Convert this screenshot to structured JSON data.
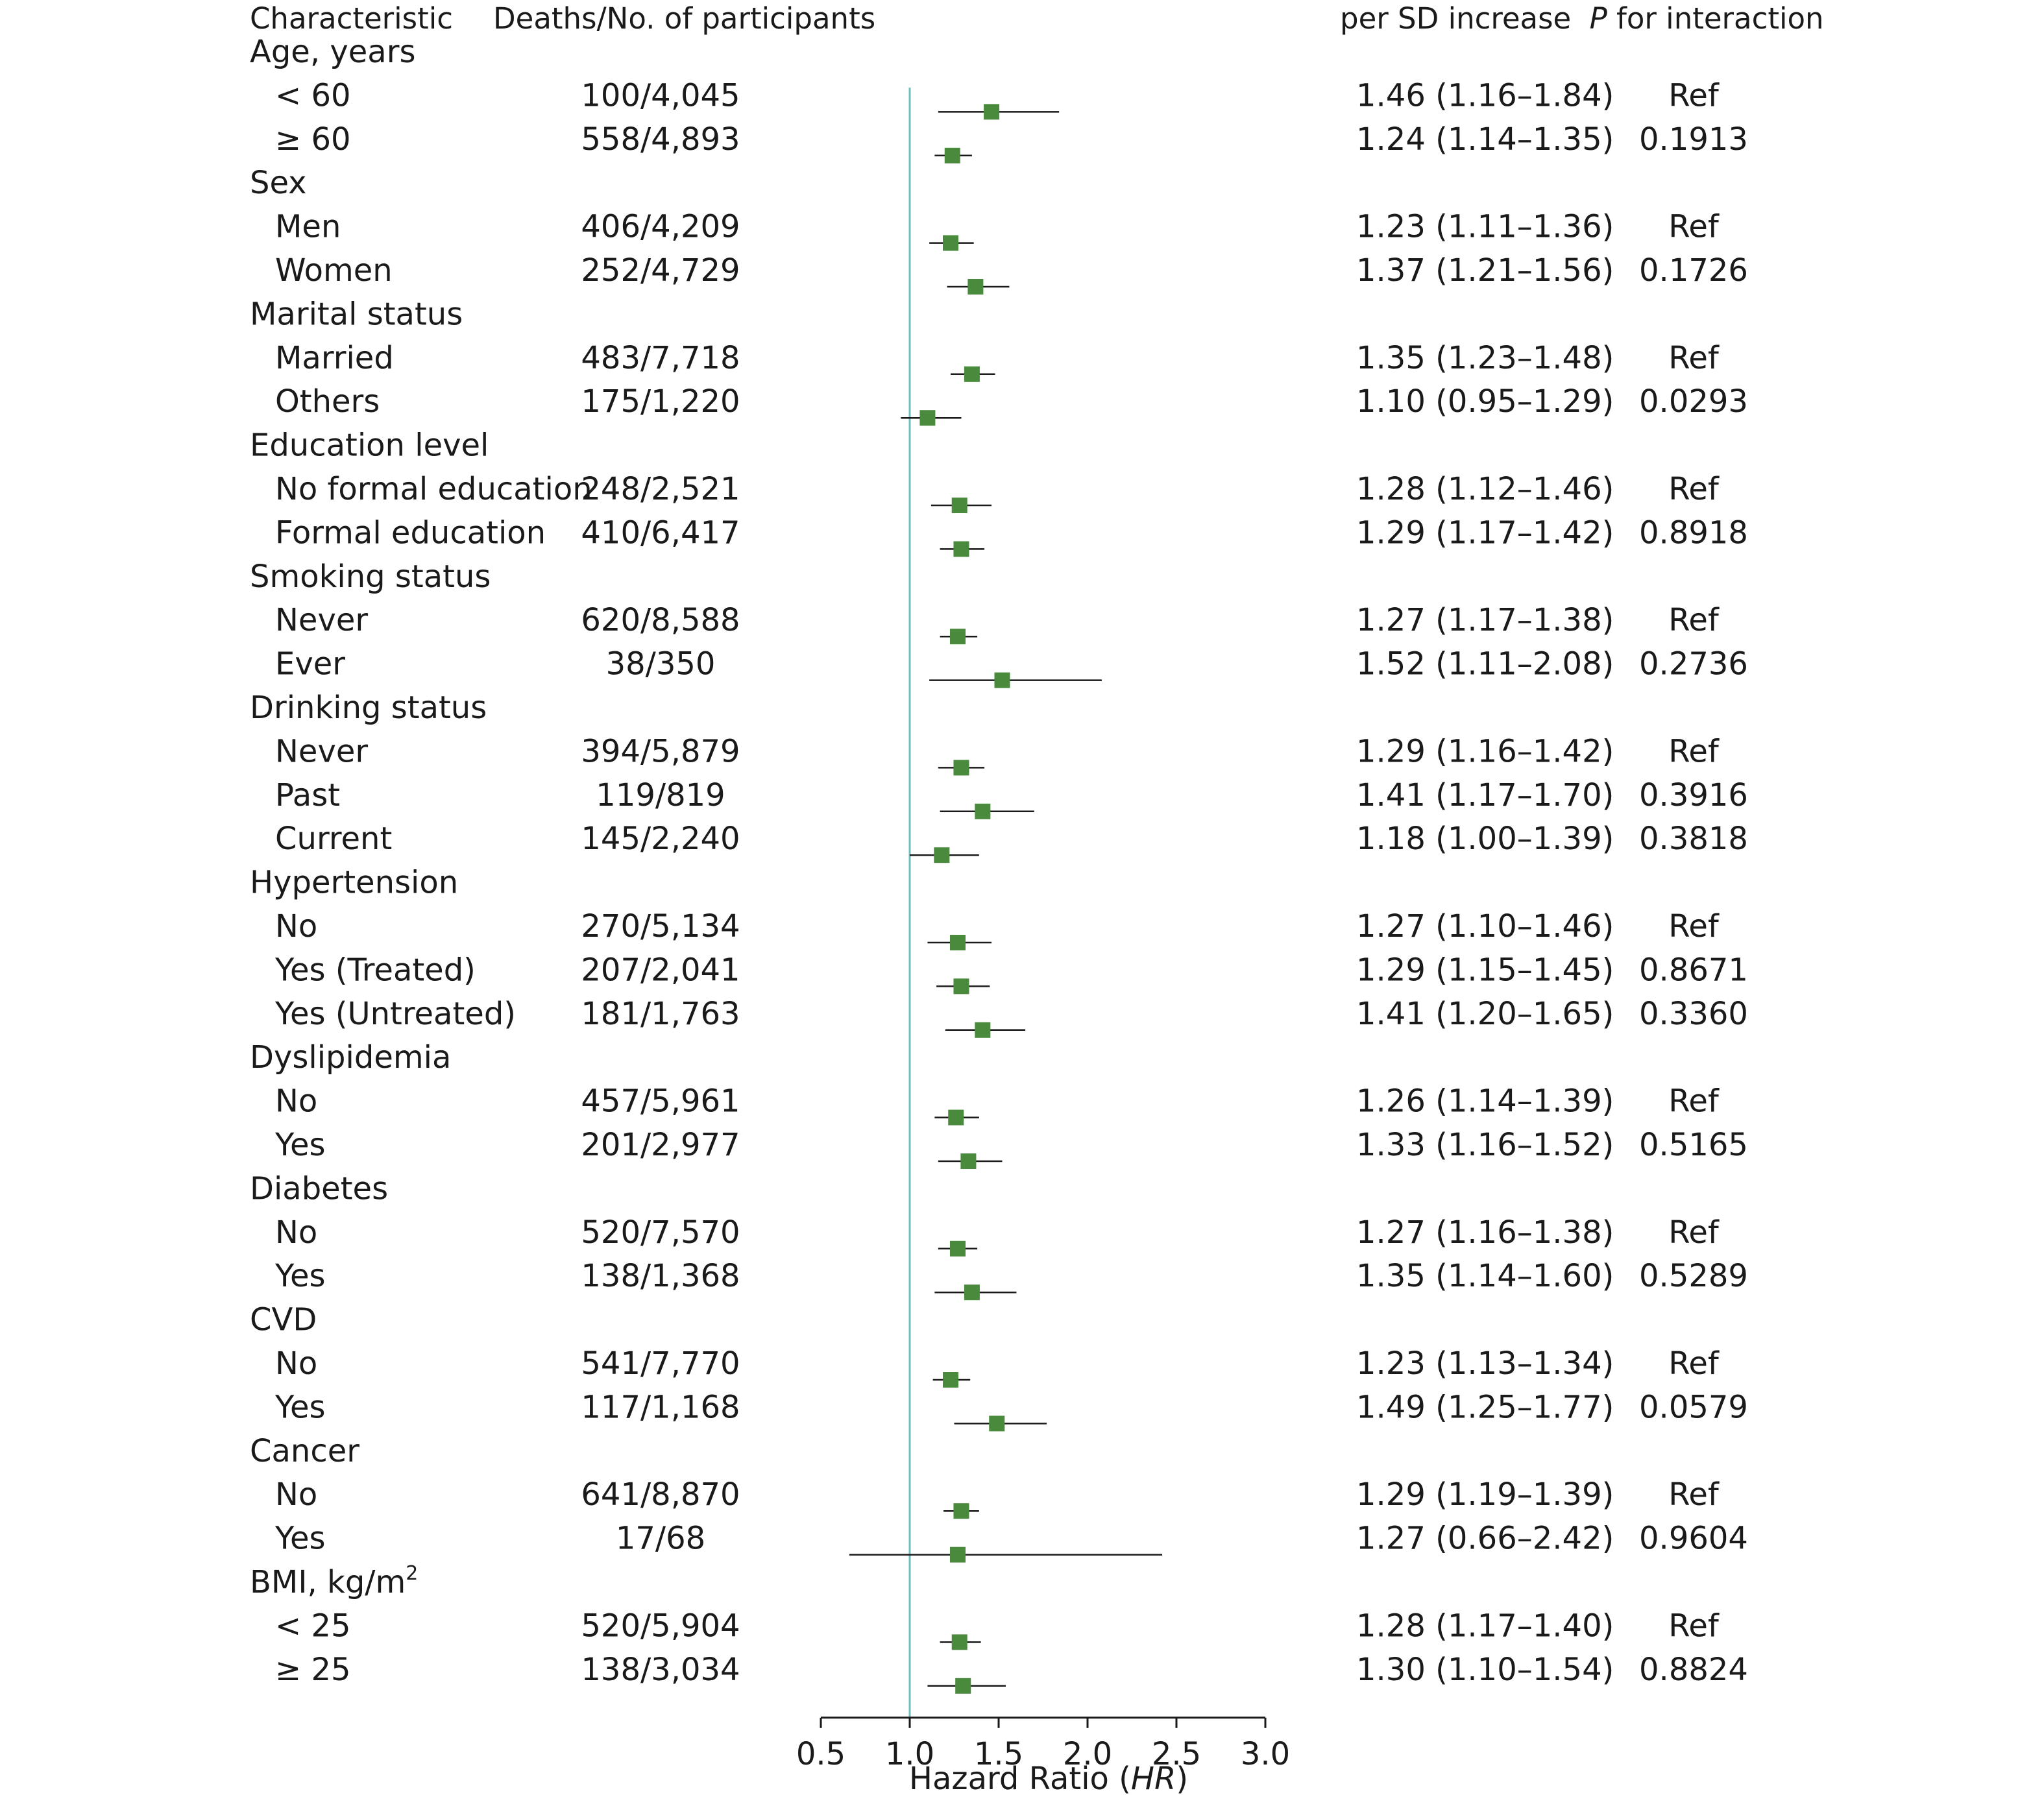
{
  "columns": {
    "characteristic": "Characteristic",
    "deaths": "Deaths/No. of participants",
    "hr": "per SD increase",
    "p_italic": "P",
    "p_rest": " for interaction"
  },
  "colors": {
    "marker": "#4a8a3c",
    "reference_line": "#6fbfc0",
    "whisker": "#1a1a1a"
  },
  "chart_data": {
    "type": "forest",
    "reference_value": 1.0,
    "xlim": [
      0.5,
      3.0
    ],
    "x_ticks": [
      "0.5",
      "1.0",
      "1.5",
      "2.0",
      "2.5",
      "3.0"
    ],
    "xlabel": {
      "prefix": "Hazard Ratio (",
      "italic": "HR",
      "suffix": ")"
    },
    "rows": [
      {
        "label": "Age, years",
        "group": true
      },
      {
        "label": "< 60",
        "deaths": "100/4,045",
        "hr": 1.46,
        "lo": 1.16,
        "hi": 1.84,
        "hr_text": "1.46 (1.16–1.84)",
        "p": "Ref"
      },
      {
        "label": "≥ 60",
        "deaths": "558/4,893",
        "hr": 1.24,
        "lo": 1.14,
        "hi": 1.35,
        "hr_text": "1.24 (1.14–1.35)",
        "p": "0.1913"
      },
      {
        "label": "Sex",
        "group": true
      },
      {
        "label": "Men",
        "deaths": "406/4,209",
        "hr": 1.23,
        "lo": 1.11,
        "hi": 1.36,
        "hr_text": "1.23 (1.11–1.36)",
        "p": "Ref"
      },
      {
        "label": "Women",
        "deaths": "252/4,729",
        "hr": 1.37,
        "lo": 1.21,
        "hi": 1.56,
        "hr_text": "1.37 (1.21–1.56)",
        "p": "0.1726"
      },
      {
        "label": "Marital status",
        "group": true
      },
      {
        "label": "Married",
        "deaths": "483/7,718",
        "hr": 1.35,
        "lo": 1.23,
        "hi": 1.48,
        "hr_text": "1.35 (1.23–1.48)",
        "p": "Ref"
      },
      {
        "label": "Others",
        "deaths": "175/1,220",
        "hr": 1.1,
        "lo": 0.95,
        "hi": 1.29,
        "hr_text": "1.10 (0.95–1.29)",
        "p": "0.0293"
      },
      {
        "label": "Education level",
        "group": true
      },
      {
        "label": "No formal education",
        "deaths": "248/2,521",
        "hr": 1.28,
        "lo": 1.12,
        "hi": 1.46,
        "hr_text": "1.28 (1.12–1.46)",
        "p": "Ref"
      },
      {
        "label": "Formal education",
        "deaths": "410/6,417",
        "hr": 1.29,
        "lo": 1.17,
        "hi": 1.42,
        "hr_text": "1.29 (1.17–1.42)",
        "p": "0.8918"
      },
      {
        "label": "Smoking status",
        "group": true
      },
      {
        "label": "Never",
        "deaths": "620/8,588",
        "hr": 1.27,
        "lo": 1.17,
        "hi": 1.38,
        "hr_text": "1.27 (1.17–1.38)",
        "p": "Ref"
      },
      {
        "label": "Ever",
        "deaths": "38/350",
        "hr": 1.52,
        "lo": 1.11,
        "hi": 2.08,
        "hr_text": "1.52 (1.11–2.08)",
        "p": "0.2736"
      },
      {
        "label": "Drinking status",
        "group": true
      },
      {
        "label": "Never",
        "deaths": "394/5,879",
        "hr": 1.29,
        "lo": 1.16,
        "hi": 1.42,
        "hr_text": "1.29 (1.16–1.42)",
        "p": "Ref"
      },
      {
        "label": "Past",
        "deaths": "119/819",
        "hr": 1.41,
        "lo": 1.17,
        "hi": 1.7,
        "hr_text": "1.41 (1.17–1.70)",
        "p": "0.3916"
      },
      {
        "label": "Current",
        "deaths": "145/2,240",
        "hr": 1.18,
        "lo": 1.0,
        "hi": 1.39,
        "hr_text": "1.18 (1.00–1.39)",
        "p": "0.3818"
      },
      {
        "label": "Hypertension",
        "group": true
      },
      {
        "label": "No",
        "deaths": "270/5,134",
        "hr": 1.27,
        "lo": 1.1,
        "hi": 1.46,
        "hr_text": "1.27 (1.10–1.46)",
        "p": "Ref"
      },
      {
        "label": "Yes (Treated)",
        "deaths": "207/2,041",
        "hr": 1.29,
        "lo": 1.15,
        "hi": 1.45,
        "hr_text": "1.29 (1.15–1.45)",
        "p": "0.8671"
      },
      {
        "label": "Yes (Untreated)",
        "deaths": "181/1,763",
        "hr": 1.41,
        "lo": 1.2,
        "hi": 1.65,
        "hr_text": "1.41 (1.20–1.65)",
        "p": "0.3360"
      },
      {
        "label": "Dyslipidemia",
        "group": true
      },
      {
        "label": "No",
        "deaths": "457/5,961",
        "hr": 1.26,
        "lo": 1.14,
        "hi": 1.39,
        "hr_text": "1.26 (1.14–1.39)",
        "p": "Ref"
      },
      {
        "label": "Yes",
        "deaths": "201/2,977",
        "hr": 1.33,
        "lo": 1.16,
        "hi": 1.52,
        "hr_text": "1.33 (1.16–1.52)",
        "p": "0.5165"
      },
      {
        "label": "Diabetes",
        "group": true
      },
      {
        "label": "No",
        "deaths": "520/7,570",
        "hr": 1.27,
        "lo": 1.16,
        "hi": 1.38,
        "hr_text": "1.27 (1.16–1.38)",
        "p": "Ref"
      },
      {
        "label": "Yes",
        "deaths": "138/1,368",
        "hr": 1.35,
        "lo": 1.14,
        "hi": 1.6,
        "hr_text": "1.35 (1.14–1.60)",
        "p": "0.5289"
      },
      {
        "label": "CVD",
        "group": true
      },
      {
        "label": "No",
        "deaths": "541/7,770",
        "hr": 1.23,
        "lo": 1.13,
        "hi": 1.34,
        "hr_text": "1.23 (1.13–1.34)",
        "p": "Ref"
      },
      {
        "label": "Yes",
        "deaths": "117/1,168",
        "hr": 1.49,
        "lo": 1.25,
        "hi": 1.77,
        "hr_text": "1.49 (1.25–1.77)",
        "p": "0.0579"
      },
      {
        "label": "Cancer",
        "group": true
      },
      {
        "label": "No",
        "deaths": "641/8,870",
        "hr": 1.29,
        "lo": 1.19,
        "hi": 1.39,
        "hr_text": "1.29 (1.19–1.39)",
        "p": "Ref"
      },
      {
        "label": "Yes",
        "deaths": "17/68",
        "hr": 1.27,
        "lo": 0.66,
        "hi": 2.42,
        "hr_text": "1.27 (0.66–2.42)",
        "p": "0.9604"
      },
      {
        "label": "BMI, kg/m",
        "label_sup": "2",
        "group": true
      },
      {
        "label": "< 25",
        "deaths": "520/5,904",
        "hr": 1.28,
        "lo": 1.17,
        "hi": 1.4,
        "hr_text": "1.28 (1.17–1.40)",
        "p": "Ref"
      },
      {
        "label": "≥ 25",
        "deaths": "138/3,034",
        "hr": 1.3,
        "lo": 1.1,
        "hi": 1.54,
        "hr_text": "1.30 (1.10–1.54)",
        "p": "0.8824"
      }
    ]
  }
}
